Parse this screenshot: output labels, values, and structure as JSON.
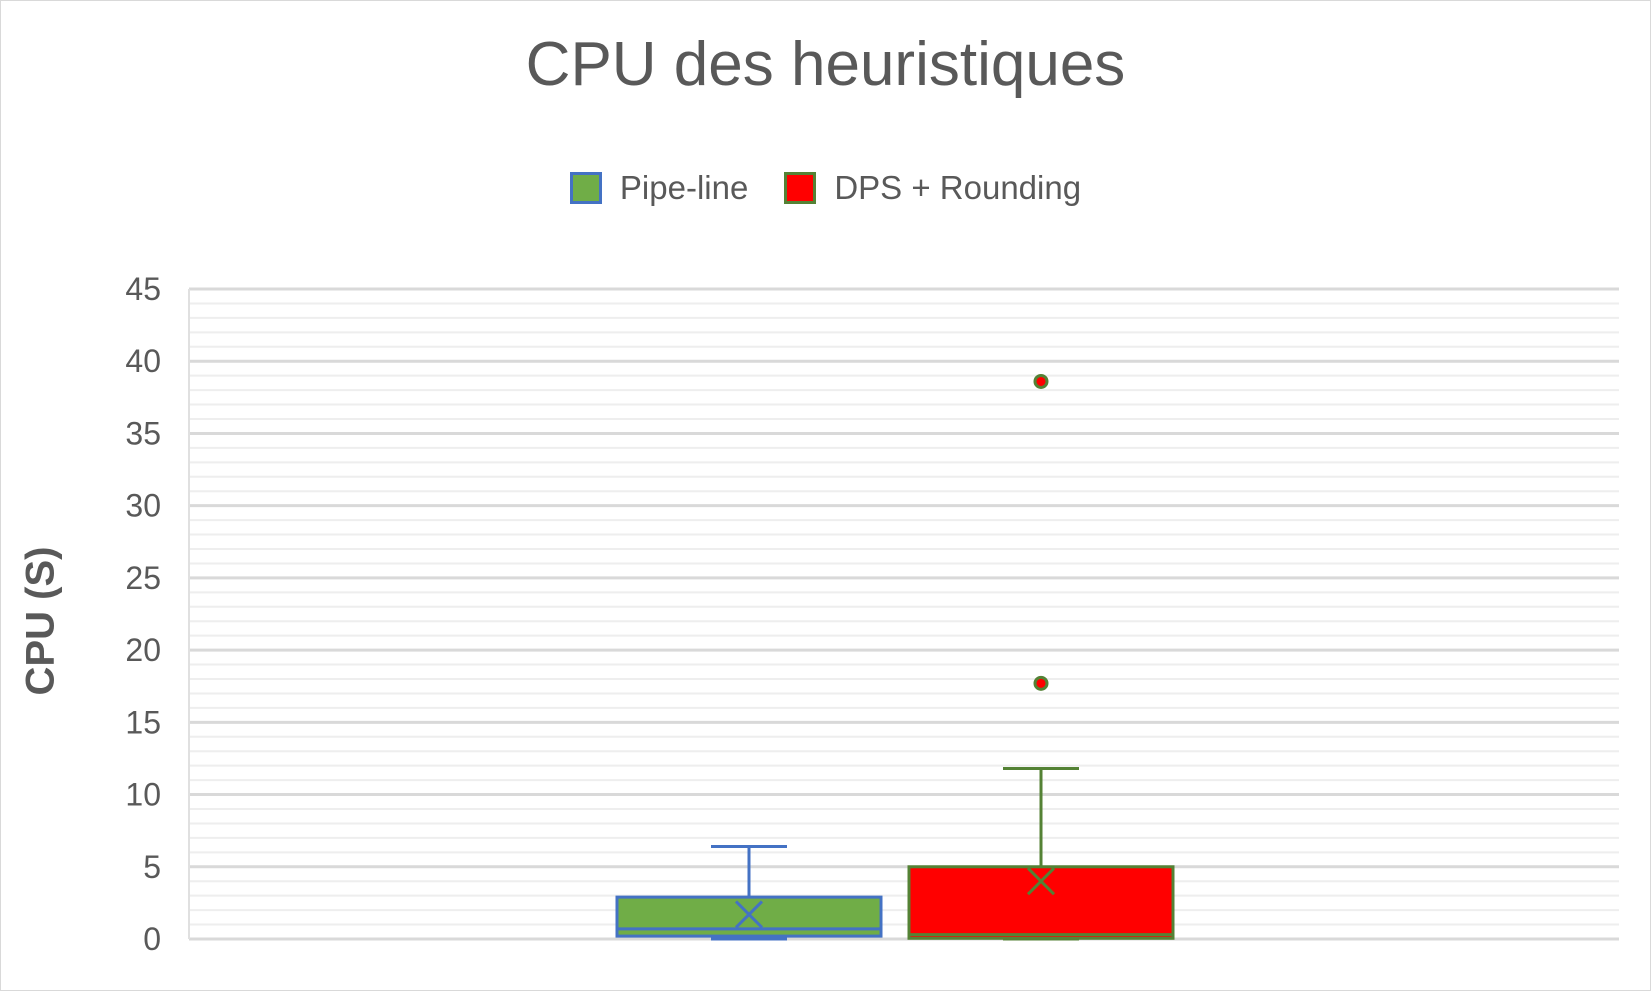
{
  "chart_data": {
    "type": "box",
    "title": "CPU des heuristiques",
    "xlabel": "",
    "ylabel": "CPU (S)",
    "ylim": [
      0,
      45
    ],
    "y_ticks": [
      "0",
      "5",
      "10",
      "15",
      "20",
      "25",
      "30",
      "35",
      "40",
      "45"
    ],
    "y_minor_step": 1,
    "grid": true,
    "legend": "top-center",
    "series": [
      {
        "name": "Pipe-line",
        "fill": "#70ad47",
        "stroke": "#4472c4",
        "whisker_low": 0,
        "q1": 0.2,
        "median": 0.7,
        "q3": 2.9,
        "whisker_high": 6.4,
        "mean": 1.7,
        "outliers": []
      },
      {
        "name": "DPS + Rounding",
        "fill": "#ff0000",
        "stroke": "#548235",
        "whisker_low": 0,
        "q1": 0.05,
        "median": 0.3,
        "q3": 5.0,
        "whisker_high": 11.8,
        "mean": 4.0,
        "outliers": [
          17.7,
          38.6
        ]
      }
    ]
  }
}
